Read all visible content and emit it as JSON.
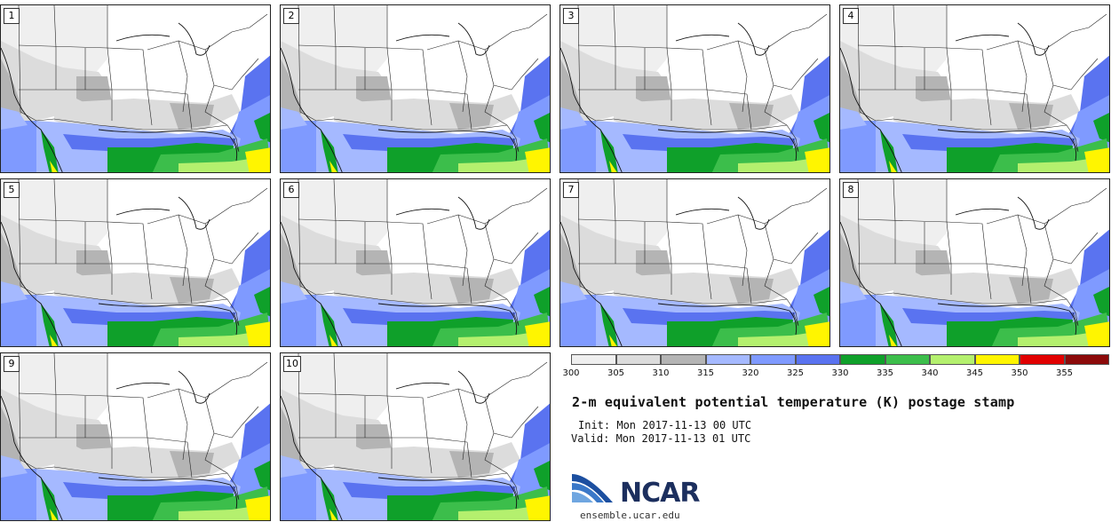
{
  "title": "2-m equivalent potential temperature (K) postage stamp",
  "init_line": "Init: Mon 2017-11-13 00 UTC",
  "valid_line": "Valid: Mon 2017-11-13 01 UTC",
  "branding": {
    "logo_text": "NCAR",
    "site": "ensemble.ucar.edu"
  },
  "members": [
    "1",
    "2",
    "3",
    "4",
    "5",
    "6",
    "7",
    "8",
    "9",
    "10"
  ],
  "legend": {
    "ticks": [
      "300",
      "305",
      "310",
      "315",
      "320",
      "325",
      "330",
      "335",
      "340",
      "345",
      "350",
      "355"
    ],
    "colors": [
      "#efefef",
      "#dcdcdc",
      "#b4b4b4",
      "#a5b9ff",
      "#7f9aff",
      "#5a73f0",
      "#0fa02a",
      "#3cbe4b",
      "#b4f06e",
      "#fff500",
      "#e10000",
      "#8c0a0a"
    ]
  }
}
